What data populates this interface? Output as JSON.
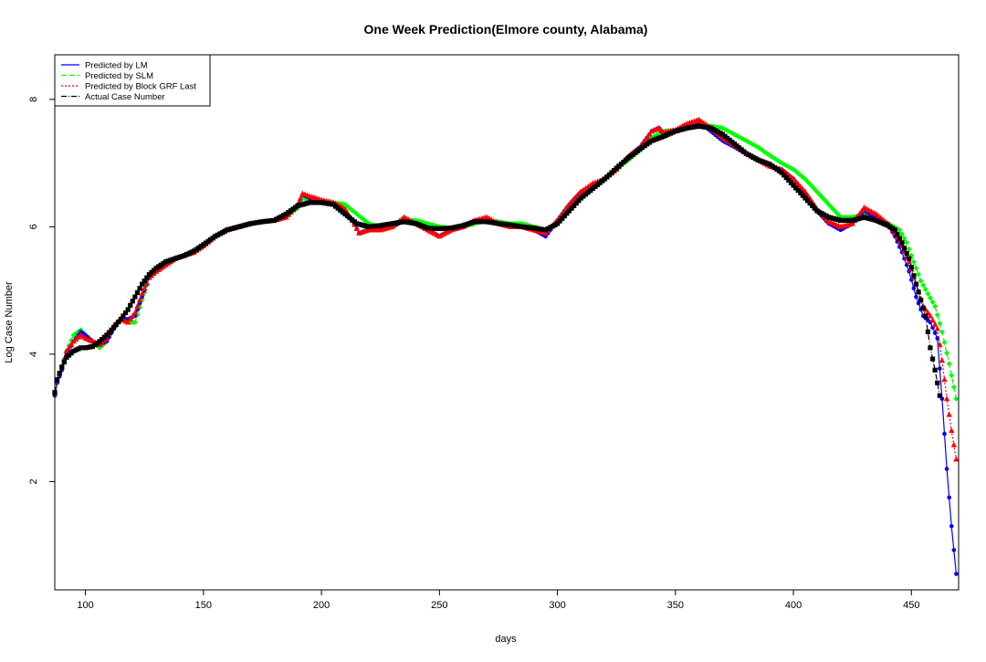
{
  "chart_data": {
    "type": "line",
    "title": "One Week Prediction(Elmore county, Alabama)",
    "xlabel": "days",
    "ylabel": "Log Case Number",
    "xlim": [
      87,
      470
    ],
    "ylim": [
      0.3,
      8.7
    ],
    "x_ticks": [
      100,
      150,
      200,
      250,
      300,
      350,
      400,
      450
    ],
    "y_ticks": [
      2,
      4,
      6,
      8
    ],
    "grid": false,
    "legend_position": "top-left",
    "series": [
      {
        "name": "Predicted by LM",
        "color": "#0000ff",
        "line_style": "solid",
        "marker": "circle",
        "x": [
          87,
          88,
          90,
          92,
          95,
          98,
          100,
          103,
          106,
          109,
          112,
          115,
          118,
          121,
          124,
          127,
          130,
          134,
          138,
          142,
          146,
          150,
          155,
          160,
          165,
          170,
          175,
          180,
          185,
          190,
          192,
          195,
          200,
          205,
          210,
          213,
          216,
          220,
          225,
          230,
          235,
          240,
          245,
          250,
          255,
          260,
          265,
          270,
          275,
          280,
          285,
          290,
          295,
          300,
          305,
          310,
          315,
          320,
          325,
          330,
          335,
          340,
          343,
          345,
          350,
          355,
          360,
          365,
          370,
          375,
          380,
          385,
          390,
          395,
          400,
          405,
          410,
          415,
          420,
          425,
          430,
          435,
          440,
          443,
          446,
          449,
          452,
          455,
          458,
          461,
          463,
          465,
          467,
          469
        ],
        "y": [
          3.35,
          3.55,
          3.75,
          4.0,
          4.2,
          4.35,
          4.3,
          4.2,
          4.15,
          4.2,
          4.4,
          4.55,
          4.55,
          4.6,
          4.9,
          5.2,
          5.3,
          5.4,
          5.5,
          5.55,
          5.6,
          5.7,
          5.85,
          5.95,
          6.0,
          6.05,
          6.08,
          6.1,
          6.15,
          6.35,
          6.5,
          6.45,
          6.4,
          6.35,
          6.25,
          6.1,
          5.9,
          5.95,
          5.95,
          6.0,
          6.1,
          6.05,
          5.95,
          5.85,
          5.95,
          6.0,
          6.1,
          6.1,
          6.05,
          6.0,
          6.0,
          5.95,
          5.85,
          6.1,
          6.35,
          6.55,
          6.65,
          6.75,
          6.9,
          7.1,
          7.25,
          7.5,
          7.55,
          7.45,
          7.5,
          7.6,
          7.65,
          7.5,
          7.35,
          7.25,
          7.15,
          7.05,
          6.95,
          6.9,
          6.75,
          6.5,
          6.25,
          6.05,
          5.95,
          6.05,
          6.25,
          6.15,
          6.05,
          5.85,
          5.6,
          5.3,
          4.9,
          4.6,
          4.5,
          4.25,
          3.3,
          2.2,
          1.3,
          0.55
        ]
      },
      {
        "name": "Predicted by SLM",
        "color": "#00ff00",
        "line_style": "dashed",
        "marker": "diamond",
        "x": [
          87,
          88,
          90,
          92,
          95,
          98,
          100,
          103,
          106,
          109,
          112,
          115,
          118,
          121,
          124,
          127,
          130,
          134,
          138,
          142,
          146,
          150,
          155,
          160,
          165,
          170,
          175,
          180,
          185,
          190,
          192,
          195,
          200,
          205,
          210,
          215,
          220,
          225,
          230,
          235,
          240,
          245,
          250,
          255,
          260,
          265,
          270,
          275,
          280,
          285,
          290,
          295,
          300,
          305,
          310,
          315,
          320,
          325,
          330,
          335,
          340,
          345,
          350,
          355,
          360,
          365,
          370,
          375,
          380,
          385,
          390,
          395,
          400,
          405,
          410,
          415,
          420,
          425,
          430,
          435,
          440,
          445,
          448,
          451,
          454,
          457,
          460,
          463,
          466,
          469
        ],
        "y": [
          3.35,
          3.55,
          3.8,
          4.05,
          4.3,
          4.38,
          4.3,
          4.2,
          4.1,
          4.2,
          4.4,
          4.55,
          4.5,
          4.5,
          4.85,
          5.2,
          5.3,
          5.4,
          5.5,
          5.55,
          5.6,
          5.7,
          5.85,
          5.95,
          6.0,
          6.05,
          6.08,
          6.1,
          6.15,
          6.3,
          6.45,
          6.42,
          6.4,
          6.38,
          6.35,
          6.2,
          6.05,
          6.0,
          6.0,
          6.1,
          6.1,
          6.05,
          6.0,
          5.98,
          6.0,
          6.05,
          6.1,
          6.08,
          6.05,
          6.05,
          6.0,
          5.95,
          6.05,
          6.3,
          6.5,
          6.6,
          6.75,
          6.9,
          7.05,
          7.2,
          7.4,
          7.5,
          7.52,
          7.58,
          7.6,
          7.58,
          7.55,
          7.45,
          7.35,
          7.25,
          7.12,
          7.0,
          6.9,
          6.75,
          6.55,
          6.35,
          6.15,
          6.15,
          6.2,
          6.15,
          6.05,
          5.95,
          5.75,
          5.45,
          5.15,
          4.95,
          4.75,
          4.35,
          3.85,
          3.3
        ]
      },
      {
        "name": "Predicted by Block GRF Last",
        "color": "#ff0000",
        "line_style": "dotted",
        "marker": "triangle",
        "x": [
          87,
          88,
          90,
          92,
          95,
          98,
          100,
          103,
          106,
          109,
          112,
          115,
          118,
          121,
          124,
          127,
          130,
          134,
          138,
          142,
          146,
          150,
          155,
          160,
          165,
          170,
          175,
          180,
          185,
          190,
          192,
          195,
          200,
          205,
          210,
          213,
          216,
          220,
          225,
          230,
          235,
          240,
          245,
          250,
          255,
          260,
          265,
          270,
          275,
          280,
          285,
          290,
          295,
          300,
          305,
          310,
          315,
          320,
          325,
          330,
          335,
          340,
          343,
          345,
          350,
          355,
          360,
          365,
          370,
          375,
          380,
          385,
          390,
          395,
          400,
          405,
          410,
          415,
          420,
          425,
          430,
          435,
          440,
          443,
          446,
          449,
          452,
          455,
          458,
          461,
          463,
          465,
          467,
          469
        ],
        "y": [
          3.4,
          3.6,
          3.8,
          4.05,
          4.2,
          4.3,
          4.25,
          4.2,
          4.15,
          4.25,
          4.45,
          4.55,
          4.5,
          4.65,
          4.95,
          5.2,
          5.3,
          5.4,
          5.5,
          5.55,
          5.6,
          5.7,
          5.85,
          5.95,
          6.0,
          6.05,
          6.08,
          6.1,
          6.15,
          6.35,
          6.52,
          6.48,
          6.42,
          6.38,
          6.28,
          6.1,
          5.9,
          5.95,
          5.95,
          6.0,
          6.15,
          6.05,
          5.95,
          5.85,
          5.95,
          6.0,
          6.1,
          6.15,
          6.05,
          6.0,
          6.0,
          5.95,
          5.9,
          6.1,
          6.35,
          6.55,
          6.68,
          6.75,
          6.9,
          7.1,
          7.25,
          7.5,
          7.55,
          7.48,
          7.52,
          7.62,
          7.68,
          7.55,
          7.4,
          7.28,
          7.15,
          7.05,
          6.95,
          6.9,
          6.75,
          6.55,
          6.28,
          6.08,
          6.0,
          6.05,
          6.3,
          6.2,
          6.05,
          5.9,
          5.7,
          5.45,
          5.1,
          4.75,
          4.6,
          4.4,
          3.9,
          3.3,
          2.8,
          2.35
        ]
      },
      {
        "name": "Actual Case Number",
        "color": "#000000",
        "line_style": "dashdot",
        "marker": "square",
        "x": [
          87,
          88,
          90,
          92,
          95,
          98,
          100,
          103,
          106,
          109,
          112,
          115,
          118,
          121,
          124,
          127,
          130,
          134,
          138,
          142,
          146,
          150,
          155,
          160,
          165,
          170,
          175,
          180,
          185,
          190,
          195,
          200,
          205,
          210,
          215,
          220,
          225,
          230,
          235,
          240,
          245,
          250,
          255,
          260,
          265,
          270,
          275,
          280,
          285,
          290,
          295,
          300,
          305,
          310,
          315,
          320,
          325,
          330,
          335,
          340,
          345,
          350,
          355,
          360,
          365,
          370,
          375,
          380,
          385,
          390,
          395,
          400,
          405,
          410,
          415,
          420,
          425,
          430,
          435,
          440,
          443,
          446,
          449,
          452,
          454,
          456,
          458,
          460,
          462
        ],
        "y": [
          3.4,
          3.6,
          3.8,
          3.95,
          4.05,
          4.1,
          4.1,
          4.12,
          4.2,
          4.3,
          4.42,
          4.55,
          4.7,
          4.9,
          5.1,
          5.25,
          5.35,
          5.45,
          5.5,
          5.55,
          5.62,
          5.72,
          5.85,
          5.95,
          6.0,
          6.05,
          6.08,
          6.1,
          6.2,
          6.33,
          6.38,
          6.38,
          6.35,
          6.2,
          6.05,
          6.0,
          6.02,
          6.05,
          6.08,
          6.05,
          5.98,
          5.97,
          5.98,
          6.02,
          6.08,
          6.08,
          6.05,
          6.03,
          6.0,
          5.98,
          5.95,
          6.05,
          6.25,
          6.45,
          6.6,
          6.75,
          6.92,
          7.08,
          7.22,
          7.35,
          7.42,
          7.5,
          7.55,
          7.58,
          7.55,
          7.45,
          7.3,
          7.15,
          7.05,
          6.98,
          6.85,
          6.65,
          6.45,
          6.25,
          6.15,
          6.1,
          6.1,
          6.15,
          6.1,
          6.02,
          5.95,
          5.75,
          5.5,
          5.1,
          4.85,
          4.6,
          4.1,
          3.75,
          3.35
        ]
      }
    ]
  }
}
